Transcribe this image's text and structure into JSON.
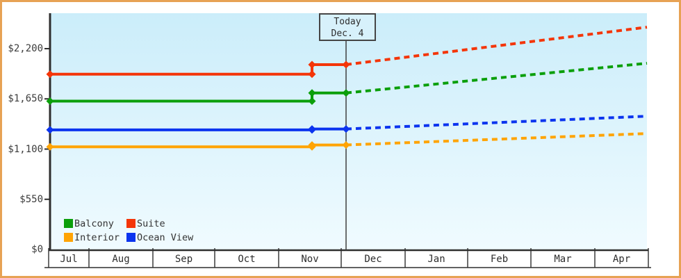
{
  "colors": {
    "frame_border": "#e7a254",
    "plot_bg_top": "#cbedfa",
    "plot_bg_bottom": "#f0fbff",
    "axis": "#2e2e2e",
    "today_line": "#3f3f3f"
  },
  "chart_data": {
    "type": "line",
    "title": "",
    "months": [
      "Jul",
      "Aug",
      "Sep",
      "Oct",
      "Nov",
      "Dec",
      "Jan",
      "Feb",
      "Mar",
      "Apr"
    ],
    "y_axis": {
      "tick_labels": [
        "$0",
        "$550",
        "$1,100",
        "$1,650",
        "$2,200"
      ],
      "tick_values": [
        0,
        550,
        1100,
        1650,
        2200
      ],
      "max_value": 2200,
      "currency": "$"
    },
    "today_annotation": {
      "title": "Today",
      "date": "Dec. 4"
    },
    "series": [
      {
        "name": "Balcony",
        "color": "#0b9f0b",
        "past": 1625,
        "current": 1715,
        "projected": 2040
      },
      {
        "name": "Suite",
        "color": "#f43508",
        "past": 1920,
        "current": 2025,
        "projected": 2435
      },
      {
        "name": "Interior",
        "color": "#ffa405",
        "past": 1125,
        "current": 1145,
        "projected": 1270
      },
      {
        "name": "Ocean View",
        "color": "#0b34ef",
        "past": 1310,
        "current": 1320,
        "projected": 1460
      }
    ],
    "legend_position": "bottom-left",
    "line_style": {
      "history": "solid",
      "projection": "dotted"
    }
  }
}
